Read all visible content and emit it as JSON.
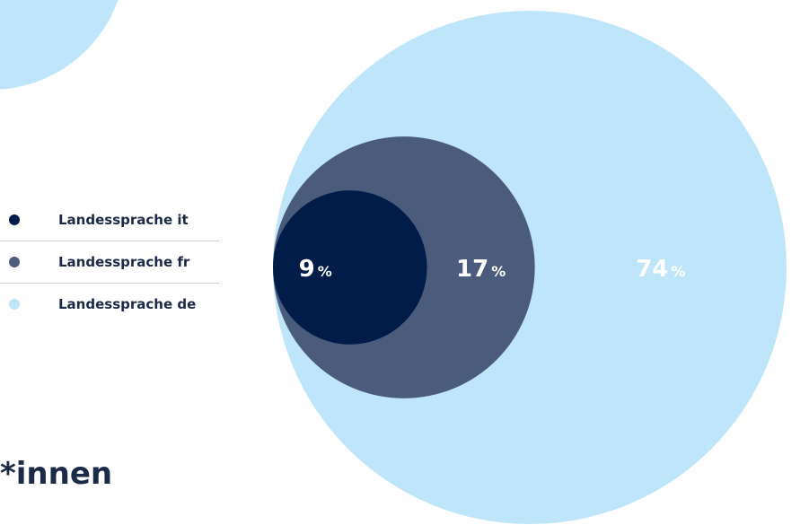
{
  "heading_fragment": "*innen",
  "colors": {
    "it": "#001c48",
    "fr": "#4a5b7c",
    "de": "#bfe5fa",
    "decorative_circle": "#bfe5fa"
  },
  "chart_data": {
    "type": "nested-circles",
    "categories": [
      "Landessprache it",
      "Landessprache fr",
      "Landessprache de"
    ],
    "values": [
      9,
      17,
      74
    ],
    "unit": "%",
    "legend_position": "left",
    "series": [
      {
        "name": "Landessprache it",
        "value": 9,
        "color": "#001c48",
        "label_color": "#ffffff"
      },
      {
        "name": "Landessprache fr",
        "value": 17,
        "color": "#4a5b7c",
        "label_color": "#ffffff"
      },
      {
        "name": "Landessprache de",
        "value": 74,
        "color": "#bfe5fa",
        "label_color": "#ffffff"
      }
    ]
  }
}
